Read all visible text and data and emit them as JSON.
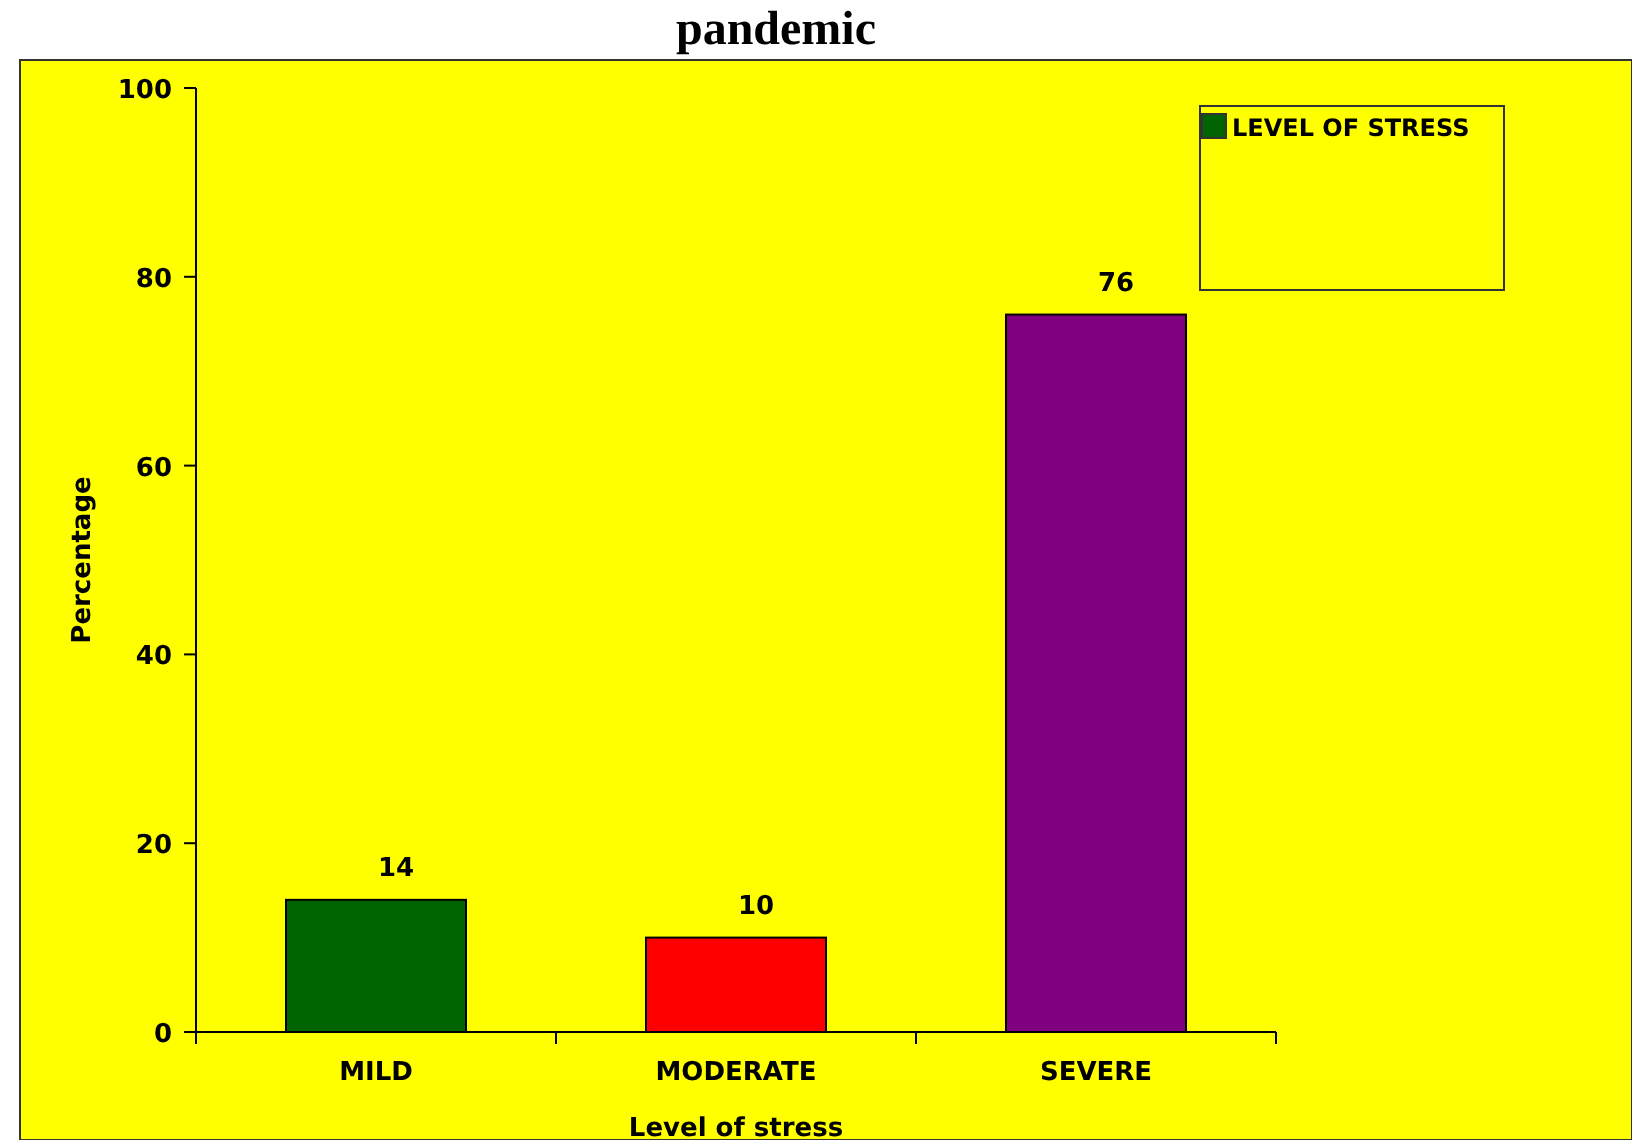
{
  "chart_data": {
    "type": "bar",
    "title": "pandemic",
    "xlabel": "Level of stress",
    "ylabel": "Percentage",
    "categories": [
      "MILD",
      "MODERATE",
      "SEVERE"
    ],
    "series": [
      {
        "name": "LEVEL OF STRESS",
        "values": [
          14,
          10,
          76
        ]
      }
    ],
    "colors": [
      "#006400",
      "#ff0000",
      "#800080"
    ],
    "ylim": [
      0,
      100
    ],
    "yticks": [
      0,
      20,
      40,
      60,
      80,
      100
    ],
    "data_labels": true,
    "legend": "top right",
    "grid": false
  }
}
